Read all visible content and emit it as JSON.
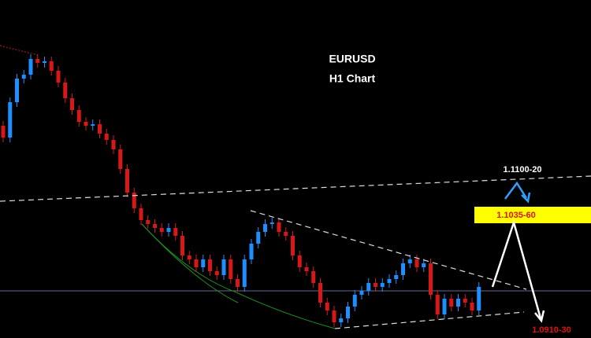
{
  "chart_data": {
    "type": "candlestick",
    "title": "EURUSD",
    "subtitle": "H1 Chart",
    "annotations": [
      "1.1100-20",
      "1.1035-60",
      "1.0910-30"
    ],
    "up_color": "#1e8fff",
    "down_color": "#d81818",
    "ylim": [
      1.0892,
      1.1322
    ],
    "open": [
      1.1162,
      1.1147,
      1.1192,
      1.1222,
      1.1227,
      1.1247,
      1.1242,
      1.1244,
      1.1232,
      1.1217,
      1.1197,
      1.1182,
      1.1167,
      1.1162,
      1.1164,
      1.1152,
      1.1144,
      1.1132,
      1.1107,
      1.1077,
      1.1057,
      1.1042,
      1.1037,
      1.1032,
      1.1027,
      1.1032,
      1.1022,
      1.0997,
      1.0992,
      1.0982,
      1.0992,
      1.0977,
      1.0972,
      1.0992,
      1.0967,
      1.0957,
      1.0992,
      1.1012,
      1.1027,
      1.1037,
      1.1039,
      1.1027,
      1.1022,
      1.0997,
      1.0982,
      1.0977,
      1.0962,
      1.0937,
      1.0927,
      1.0912,
      1.0917,
      1.0932,
      1.0947,
      1.0952,
      1.0962,
      1.0957,
      1.0962,
      1.0967,
      1.0972,
      1.0987,
      1.0992,
      1.0982,
      1.0987,
      1.0947,
      1.0922,
      1.0942,
      1.0932,
      1.0942,
      1.0937,
      1.0927
    ],
    "high": [
      1.1168,
      1.1198,
      1.1228,
      1.1233,
      1.1253,
      1.1253,
      1.125,
      1.125,
      1.1238,
      1.1223,
      1.1203,
      1.1188,
      1.1173,
      1.117,
      1.117,
      1.1158,
      1.115,
      1.1138,
      1.1113,
      1.1083,
      1.1063,
      1.1048,
      1.1043,
      1.1038,
      1.1038,
      1.1038,
      1.1028,
      1.1003,
      1.0998,
      1.0998,
      1.0998,
      1.0983,
      1.0998,
      1.0998,
      1.0973,
      1.0998,
      1.1018,
      1.1033,
      1.1043,
      1.1045,
      1.1045,
      1.1033,
      1.1028,
      1.1003,
      1.0988,
      1.0983,
      1.0968,
      1.0943,
      1.0933,
      1.0923,
      1.0938,
      1.0953,
      1.0958,
      1.0968,
      1.0968,
      1.0968,
      1.0973,
      1.0978,
      1.0993,
      1.0998,
      1.0998,
      1.0993,
      1.0993,
      1.0953,
      1.0948,
      1.0948,
      1.0948,
      1.0948,
      1.0943,
      1.0963
    ],
    "low": [
      1.1141,
      1.1141,
      1.1186,
      1.1216,
      1.1221,
      1.1236,
      1.1236,
      1.1226,
      1.1211,
      1.1191,
      1.1176,
      1.1161,
      1.1156,
      1.1156,
      1.1146,
      1.1138,
      1.1126,
      1.1101,
      1.1071,
      1.1051,
      1.1036,
      1.1031,
      1.1026,
      1.1021,
      1.1021,
      1.1016,
      1.0991,
      1.0986,
      1.0976,
      1.0976,
      1.0971,
      1.0966,
      1.0966,
      1.0961,
      1.0951,
      1.0951,
      1.0986,
      1.1006,
      1.1021,
      1.1031,
      1.1021,
      1.1016,
      1.0991,
      1.0976,
      1.0971,
      1.0956,
      1.0931,
      1.0921,
      1.0906,
      1.0906,
      1.0911,
      1.0926,
      1.0941,
      1.0946,
      1.0951,
      1.0951,
      1.0956,
      1.0961,
      1.0966,
      1.0981,
      1.0976,
      1.0976,
      1.0941,
      1.0916,
      1.0916,
      1.0926,
      1.0926,
      1.0931,
      1.0921,
      1.0921
    ],
    "close": [
      1.1147,
      1.1192,
      1.1222,
      1.1227,
      1.1247,
      1.1242,
      1.1244,
      1.1232,
      1.1217,
      1.1197,
      1.1182,
      1.1167,
      1.1162,
      1.1164,
      1.1152,
      1.1144,
      1.1132,
      1.1107,
      1.1077,
      1.1057,
      1.1042,
      1.1037,
      1.1032,
      1.1027,
      1.1032,
      1.1022,
      1.0997,
      1.0992,
      1.0982,
      1.0992,
      1.0977,
      1.0972,
      1.0992,
      1.0967,
      1.0957,
      1.0992,
      1.1012,
      1.1027,
      1.1037,
      1.1039,
      1.1027,
      1.1022,
      1.0997,
      1.0982,
      1.0977,
      1.0962,
      1.0937,
      1.0927,
      1.0912,
      1.0917,
      1.0932,
      1.0947,
      1.0952,
      1.0962,
      1.0957,
      1.0962,
      1.0967,
      1.0972,
      1.0987,
      1.0992,
      1.0982,
      1.0987,
      1.0947,
      1.0922,
      1.0942,
      1.0932,
      1.0942,
      1.0937,
      1.0927,
      1.0957
    ]
  }
}
